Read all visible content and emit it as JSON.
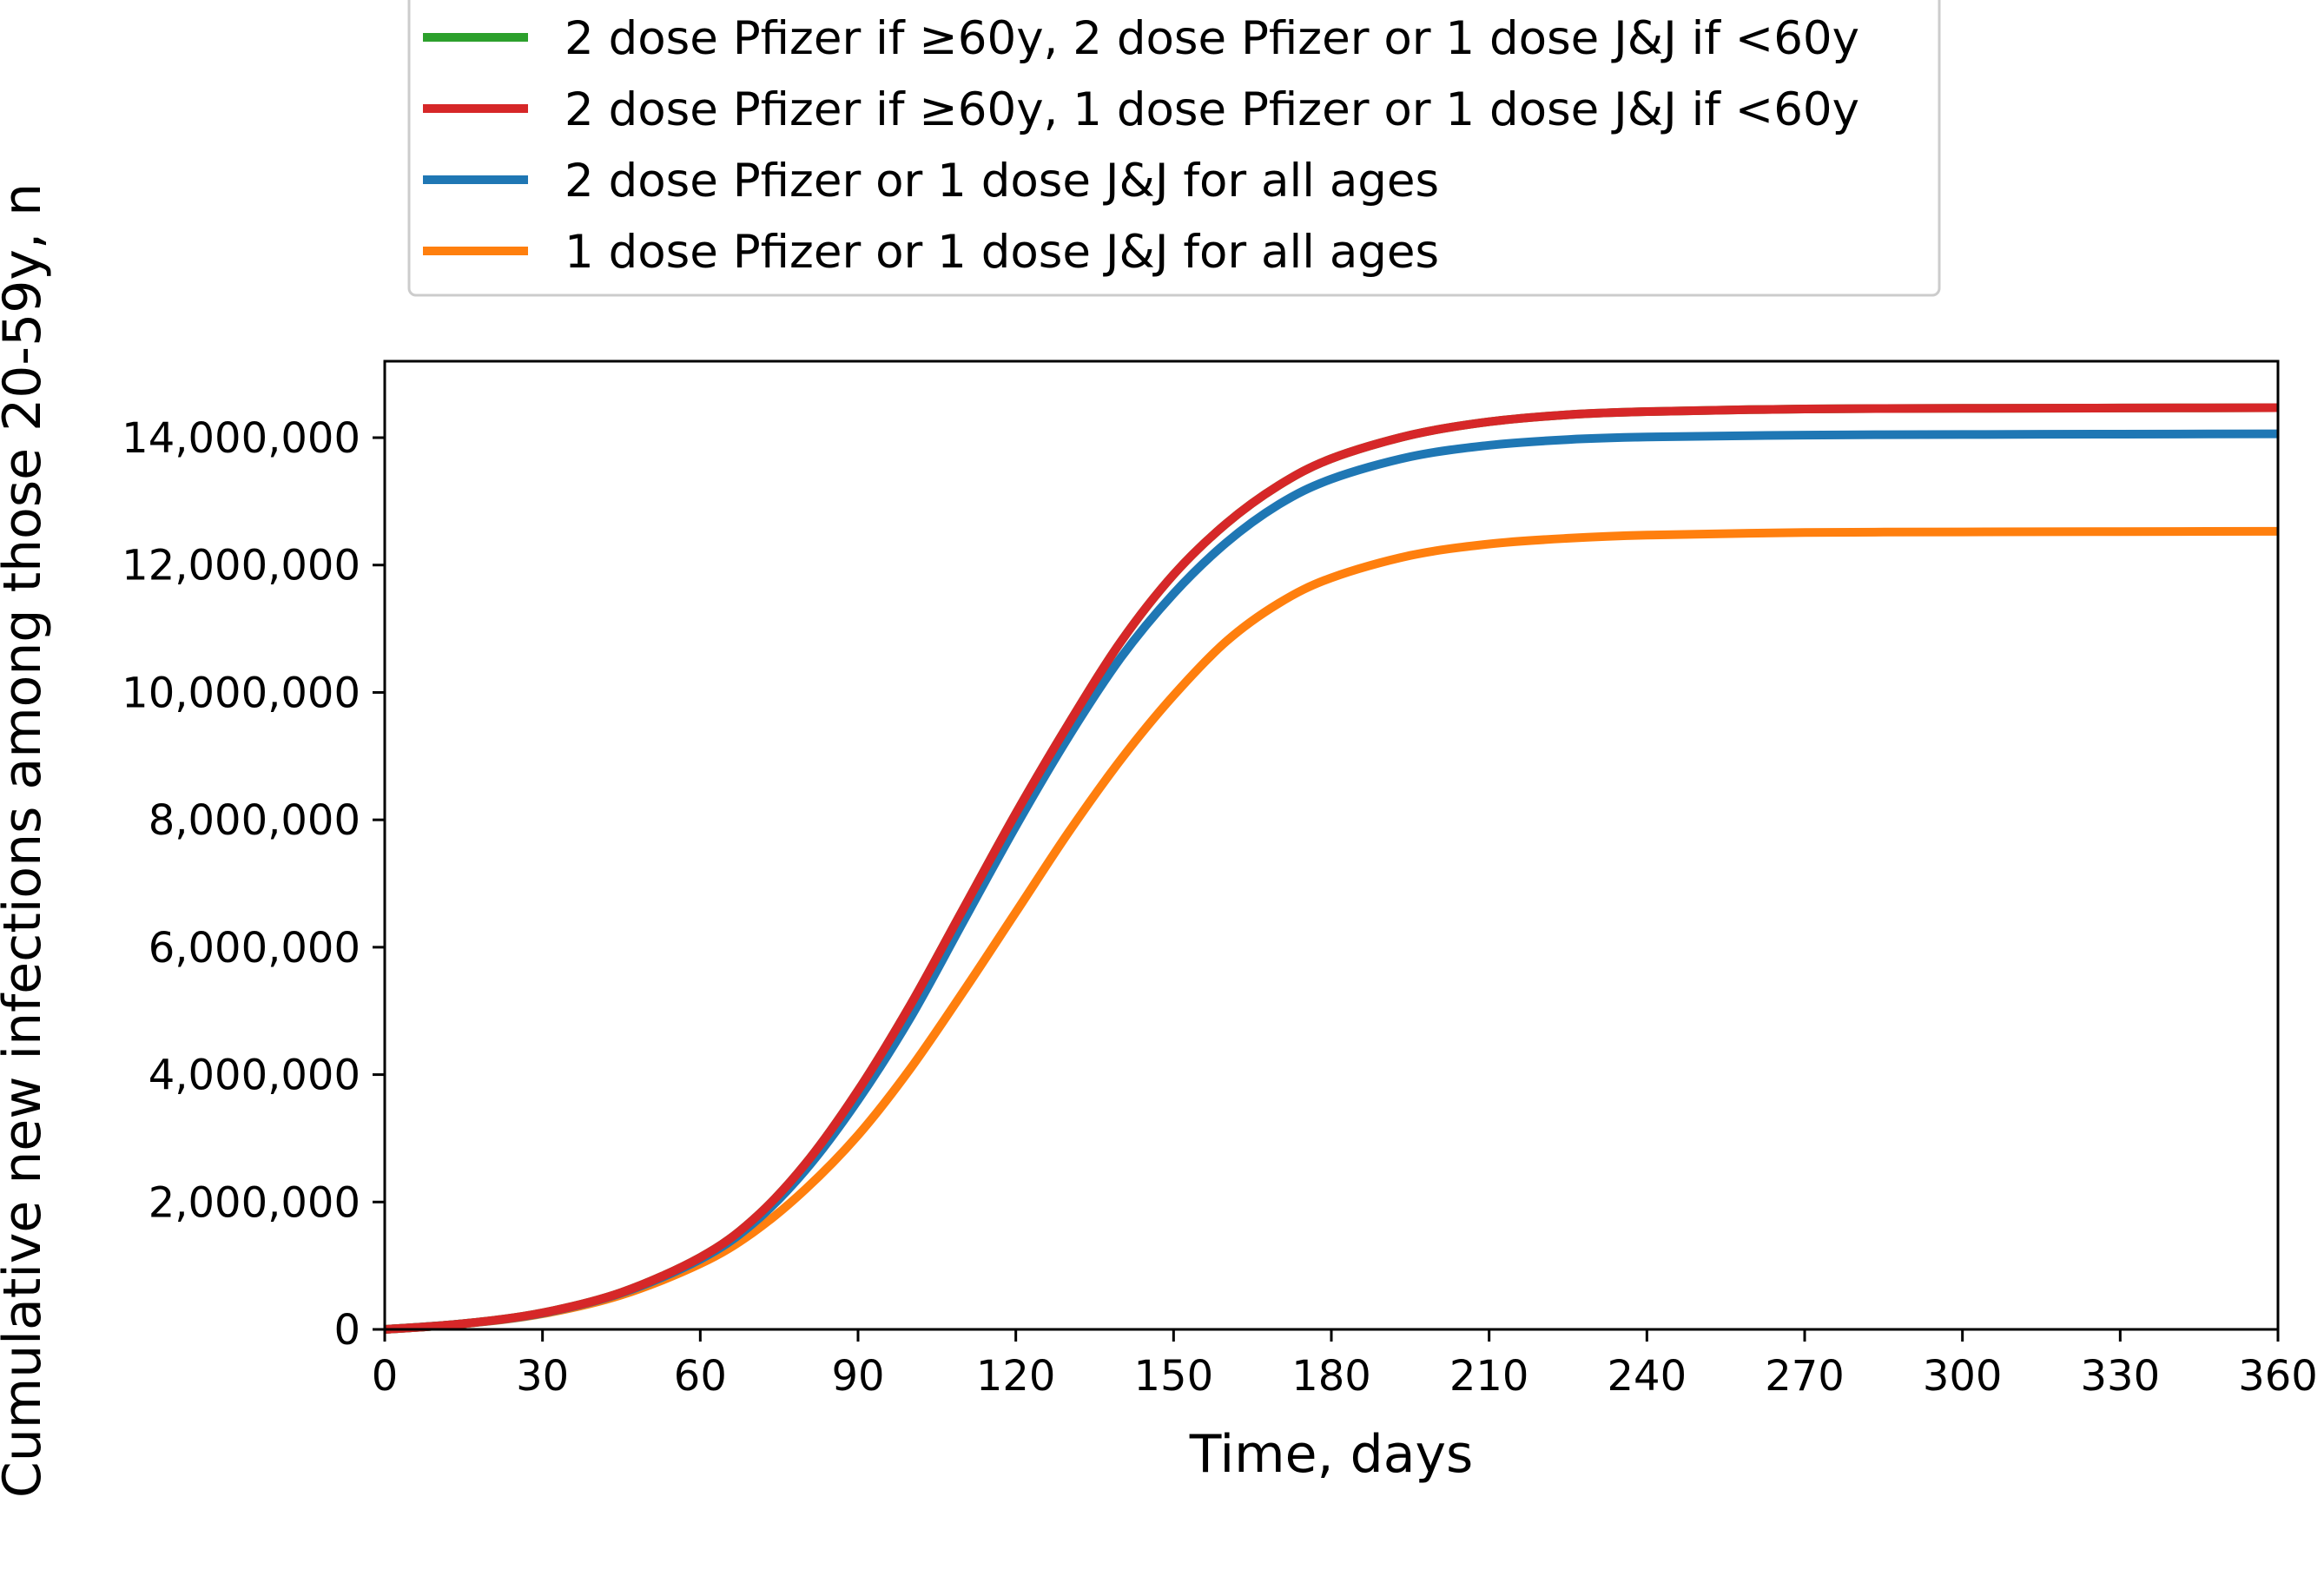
{
  "chart_data": {
    "type": "line",
    "xlabel": "Time, days",
    "ylabel": "Cumulative new infections among those 20-59y, n",
    "xlim": [
      0,
      360
    ],
    "ylim": [
      0,
      15200000
    ],
    "xticks": [
      0,
      30,
      60,
      90,
      120,
      150,
      180,
      210,
      240,
      270,
      300,
      330,
      360
    ],
    "xtick_labels": [
      "0",
      "30",
      "60",
      "90",
      "120",
      "150",
      "180",
      "210",
      "240",
      "270",
      "300",
      "330",
      "360"
    ],
    "yticks": [
      0,
      2000000,
      4000000,
      6000000,
      8000000,
      10000000,
      12000000,
      14000000
    ],
    "ytick_labels": [
      "0",
      "2,000,000",
      "4,000,000",
      "6,000,000",
      "8,000,000",
      "10,000,000",
      "12,000,000",
      "14,000,000"
    ],
    "grid": false,
    "legend_position": "top",
    "series": [
      {
        "name": "2 dose Pfizer if ≥60y, 2 dose Pfizer or 1 dose J&J if <60y",
        "color": "#2ca02c",
        "x": [
          0,
          15,
          30,
          45,
          60,
          70,
          80,
          90,
          100,
          110,
          120,
          130,
          140,
          150,
          160,
          170,
          180,
          195,
          210,
          225,
          240,
          270,
          300,
          330,
          360
        ],
        "y": [
          0,
          90000,
          260000,
          580000,
          1130000,
          1720000,
          2600000,
          3750000,
          5100000,
          6600000,
          8100000,
          9500000,
          10800000,
          11850000,
          12650000,
          13250000,
          13670000,
          14040000,
          14250000,
          14360000,
          14410000,
          14450000,
          14460000,
          14465000,
          14470000
        ]
      },
      {
        "name": "2 dose Pfizer if ≥60y, 1 dose Pfizer or 1 dose J&J if <60y",
        "color": "#d62728",
        "x": [
          0,
          15,
          30,
          45,
          60,
          70,
          80,
          90,
          100,
          110,
          120,
          130,
          140,
          150,
          160,
          170,
          180,
          195,
          210,
          225,
          240,
          270,
          300,
          330,
          360
        ],
        "y": [
          0,
          90000,
          260000,
          580000,
          1130000,
          1720000,
          2600000,
          3750000,
          5100000,
          6600000,
          8100000,
          9500000,
          10800000,
          11850000,
          12650000,
          13250000,
          13670000,
          14040000,
          14250000,
          14360000,
          14410000,
          14450000,
          14460000,
          14465000,
          14470000
        ]
      },
      {
        "name": "2 dose Pfizer or 1 dose J&J for all ages",
        "color": "#1f77b4",
        "x": [
          0,
          15,
          30,
          45,
          60,
          70,
          80,
          90,
          100,
          110,
          120,
          130,
          140,
          150,
          160,
          170,
          180,
          195,
          210,
          225,
          240,
          270,
          300,
          330,
          360
        ],
        "y": [
          0,
          90000,
          255000,
          570000,
          1100000,
          1660000,
          2500000,
          3600000,
          4900000,
          6400000,
          7900000,
          9300000,
          10550000,
          11550000,
          12350000,
          12950000,
          13350000,
          13700000,
          13880000,
          13970000,
          14010000,
          14040000,
          14050000,
          14055000,
          14060000
        ]
      },
      {
        "name": "1 dose Pfizer or 1 dose J&J for all ages",
        "color": "#ff7f0e",
        "x": [
          0,
          15,
          30,
          45,
          60,
          70,
          80,
          90,
          100,
          110,
          120,
          130,
          140,
          150,
          160,
          170,
          180,
          195,
          210,
          225,
          240,
          270,
          300,
          330,
          360
        ],
        "y": [
          0,
          88000,
          245000,
          540000,
          1030000,
          1520000,
          2200000,
          3050000,
          4100000,
          5300000,
          6550000,
          7800000,
          8950000,
          9950000,
          10800000,
          11400000,
          11800000,
          12150000,
          12330000,
          12420000,
          12470000,
          12510000,
          12520000,
          12525000,
          12530000
        ]
      }
    ]
  }
}
